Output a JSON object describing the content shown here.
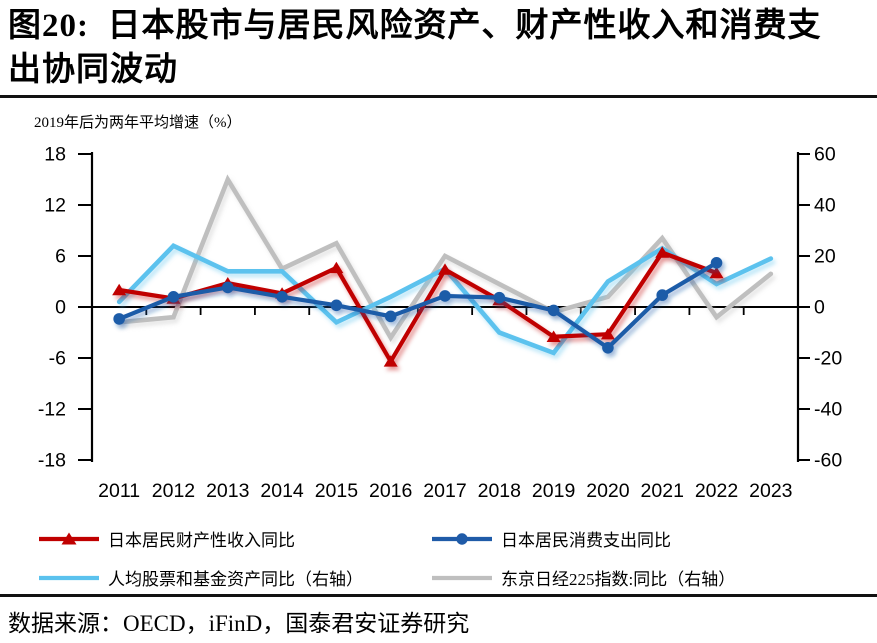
{
  "figure": {
    "title_line1": "图20:  日本股市与居民风险资产、财产性收入和消费支",
    "title_line2": "出协同波动",
    "source": "数据来源：OECD，iFinD，国泰君安证券研究"
  },
  "chart_data": {
    "type": "line",
    "title": "日本股市与居民风险资产、财产性收入和消费支出协同波动",
    "subtitle": "2019年后为两年平均增速（%）",
    "categories": [
      "2011",
      "2012",
      "2013",
      "2014",
      "2015",
      "2016",
      "2017",
      "2018",
      "2019",
      "2020",
      "2021",
      "2022",
      "2023"
    ],
    "left_axis": {
      "min": -18,
      "max": 18,
      "ticks": [
        18,
        12,
        6,
        0,
        -6,
        -12,
        -18
      ]
    },
    "right_axis": {
      "min": -60,
      "max": 60,
      "ticks": [
        60,
        40,
        20,
        0,
        -20,
        -40,
        -60
      ]
    },
    "grid": "off",
    "legend_position": "bottom",
    "series": [
      {
        "name": "日本居民财产性收入同比",
        "axis": "left",
        "color": "#c00000",
        "marker": "triangle",
        "values": [
          2.0,
          1.0,
          2.8,
          1.6,
          4.6,
          -6.4,
          4.4,
          0.8,
          -3.5,
          -3.2,
          6.4,
          4.0,
          null
        ]
      },
      {
        "name": "日本居民消费支出同比",
        "axis": "left",
        "color": "#1f5ba8",
        "marker": "circle",
        "values": [
          -1.4,
          1.2,
          2.3,
          1.2,
          0.2,
          -1.1,
          1.3,
          1.1,
          -0.4,
          -4.8,
          1.4,
          5.2,
          null
        ]
      },
      {
        "name": "人均股票和基金资产同比（右轴）",
        "axis": "right",
        "color": "#5bc2ee",
        "marker": "none",
        "values": [
          2,
          24,
          14,
          14,
          -6,
          4,
          15,
          -10,
          -18,
          10,
          23,
          9,
          19
        ]
      },
      {
        "name": "东京日经225指数:同比（右轴）",
        "axis": "right",
        "color": "#bfbfbf",
        "marker": "none",
        "values": [
          -6,
          -4,
          50,
          15,
          25,
          -12,
          20,
          9,
          -2,
          4,
          27,
          -4,
          13
        ]
      }
    ]
  }
}
